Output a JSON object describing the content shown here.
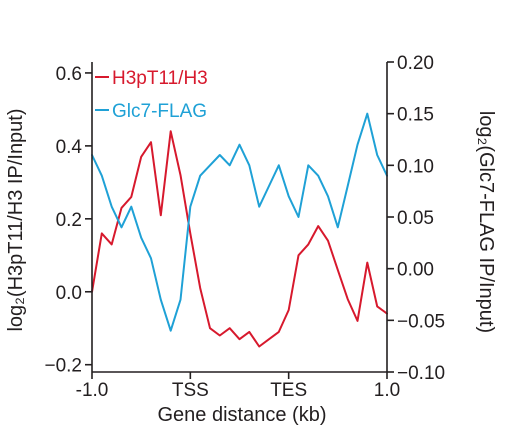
{
  "chart_data": {
    "type": "line",
    "xlabel": "Gene distance (kb)",
    "x_ticks": [
      "-1.0",
      "TSS",
      "TES",
      "1.0"
    ],
    "x_tick_positions": [
      0,
      1,
      2,
      3
    ],
    "xlim": [
      0,
      3
    ],
    "ylabel_left": "log₂(H3pT11/H3 IP/Input)",
    "ylim_left": [
      -0.22,
      0.63
    ],
    "yticks_left": [
      "−0.2",
      "0.0",
      "0.2",
      "0.4",
      "0.6"
    ],
    "yticks_left_values": [
      -0.2,
      0.0,
      0.2,
      0.4,
      0.6
    ],
    "ylabel_right": "log₂(Glc7-FLAG IP/Input)",
    "ylim_right": [
      -0.1,
      0.2
    ],
    "yticks_right": [
      "−0.10",
      "−0.05",
      "0.00",
      "0.05",
      "0.10",
      "0.15",
      "0.20"
    ],
    "yticks_right_values": [
      -0.1,
      -0.05,
      0.0,
      0.05,
      0.1,
      0.15,
      0.2
    ],
    "grid": false,
    "legend": "top-left",
    "colors": {
      "red": "#d7192d",
      "blue": "#1fa1d6",
      "axis": "#231f20"
    },
    "series": [
      {
        "name": "H3pT11/H3",
        "axis": "left",
        "color": "#d7192d",
        "x": [
          0,
          0.1,
          0.2,
          0.3,
          0.4,
          0.5,
          0.6,
          0.7,
          0.8,
          0.9,
          1.0,
          1.1,
          1.2,
          1.3,
          1.4,
          1.5,
          1.6,
          1.7,
          1.8,
          1.9,
          2.0,
          2.1,
          2.2,
          2.3,
          2.4,
          2.5,
          2.6,
          2.7,
          2.8,
          2.9,
          3.0
        ],
        "values": [
          0.0,
          0.16,
          0.13,
          0.23,
          0.26,
          0.37,
          0.41,
          0.21,
          0.44,
          0.32,
          0.16,
          0.01,
          -0.1,
          -0.12,
          -0.1,
          -0.13,
          -0.11,
          -0.15,
          -0.13,
          -0.11,
          -0.05,
          0.1,
          0.13,
          0.18,
          0.14,
          0.06,
          -0.02,
          -0.08,
          0.08,
          -0.04,
          -0.06
        ]
      },
      {
        "name": "Glc7-FLAG",
        "axis": "right",
        "color": "#1fa1d6",
        "x": [
          0,
          0.1,
          0.2,
          0.3,
          0.4,
          0.5,
          0.6,
          0.7,
          0.8,
          0.9,
          1.0,
          1.1,
          1.2,
          1.3,
          1.4,
          1.5,
          1.6,
          1.7,
          1.8,
          1.9,
          2.0,
          2.1,
          2.2,
          2.3,
          2.4,
          2.5,
          2.6,
          2.7,
          2.8,
          2.9,
          3.0
        ],
        "values": [
          0.11,
          0.09,
          0.06,
          0.04,
          0.06,
          0.03,
          0.01,
          -0.03,
          -0.06,
          -0.03,
          0.06,
          0.09,
          0.1,
          0.11,
          0.1,
          0.12,
          0.1,
          0.06,
          0.08,
          0.1,
          0.07,
          0.05,
          0.1,
          0.09,
          0.07,
          0.04,
          0.08,
          0.12,
          0.15,
          0.11,
          0.09
        ]
      }
    ]
  }
}
